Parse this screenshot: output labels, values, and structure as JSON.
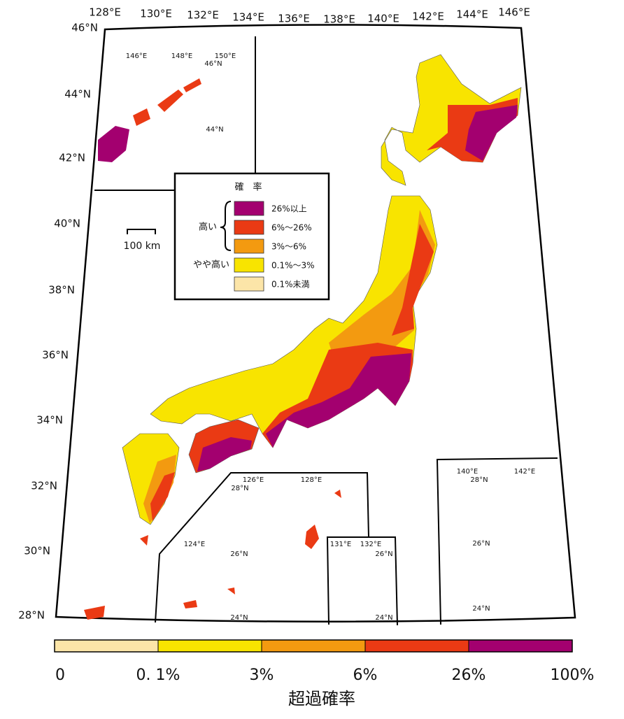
{
  "map": {
    "lon_labels": [
      "128°E",
      "130°E",
      "132°E",
      "134°E",
      "136°E",
      "138°E",
      "140°E",
      "142°E",
      "144°E",
      "146°E"
    ],
    "lat_labels": [
      "46°N",
      "44°N",
      "42°N",
      "40°N",
      "38°N",
      "36°N",
      "34°N",
      "32°N",
      "30°N",
      "28°N"
    ],
    "inset_north": [
      "146°E",
      "148°E",
      "150°E",
      "46°N",
      "44°N"
    ],
    "inset_okinawa": [
      "126°E",
      "128°E",
      "28°N",
      "124°E",
      "26°N",
      "24°N"
    ],
    "inset_daito": [
      "131°E",
      "132°E",
      "26°N",
      "24°N"
    ],
    "inset_ogasawara": [
      "140°E",
      "142°E",
      "28°N",
      "26°N",
      "24°N"
    ],
    "scale_bar": "100 km"
  },
  "legend": {
    "title": "確　率",
    "group_high": "高い",
    "group_mid": "やや高い",
    "items": [
      {
        "label": "26%以上",
        "color": "#a3006f"
      },
      {
        "label": "6%～26%",
        "color": "#ea3a14"
      },
      {
        "label": "3%～6%",
        "color": "#f39a10"
      },
      {
        "label": "0.1%～3%",
        "color": "#f8e400"
      },
      {
        "label": "0.1%未満",
        "color": "#fce5a8"
      }
    ]
  },
  "colorbar": {
    "colors": [
      "#fce5a8",
      "#f8e400",
      "#f39a10",
      "#ea3a14",
      "#a3006f"
    ],
    "ticks": [
      "0",
      "0. 1%",
      "3%",
      "6%",
      "26%",
      "100%"
    ],
    "label": "超過確率"
  }
}
